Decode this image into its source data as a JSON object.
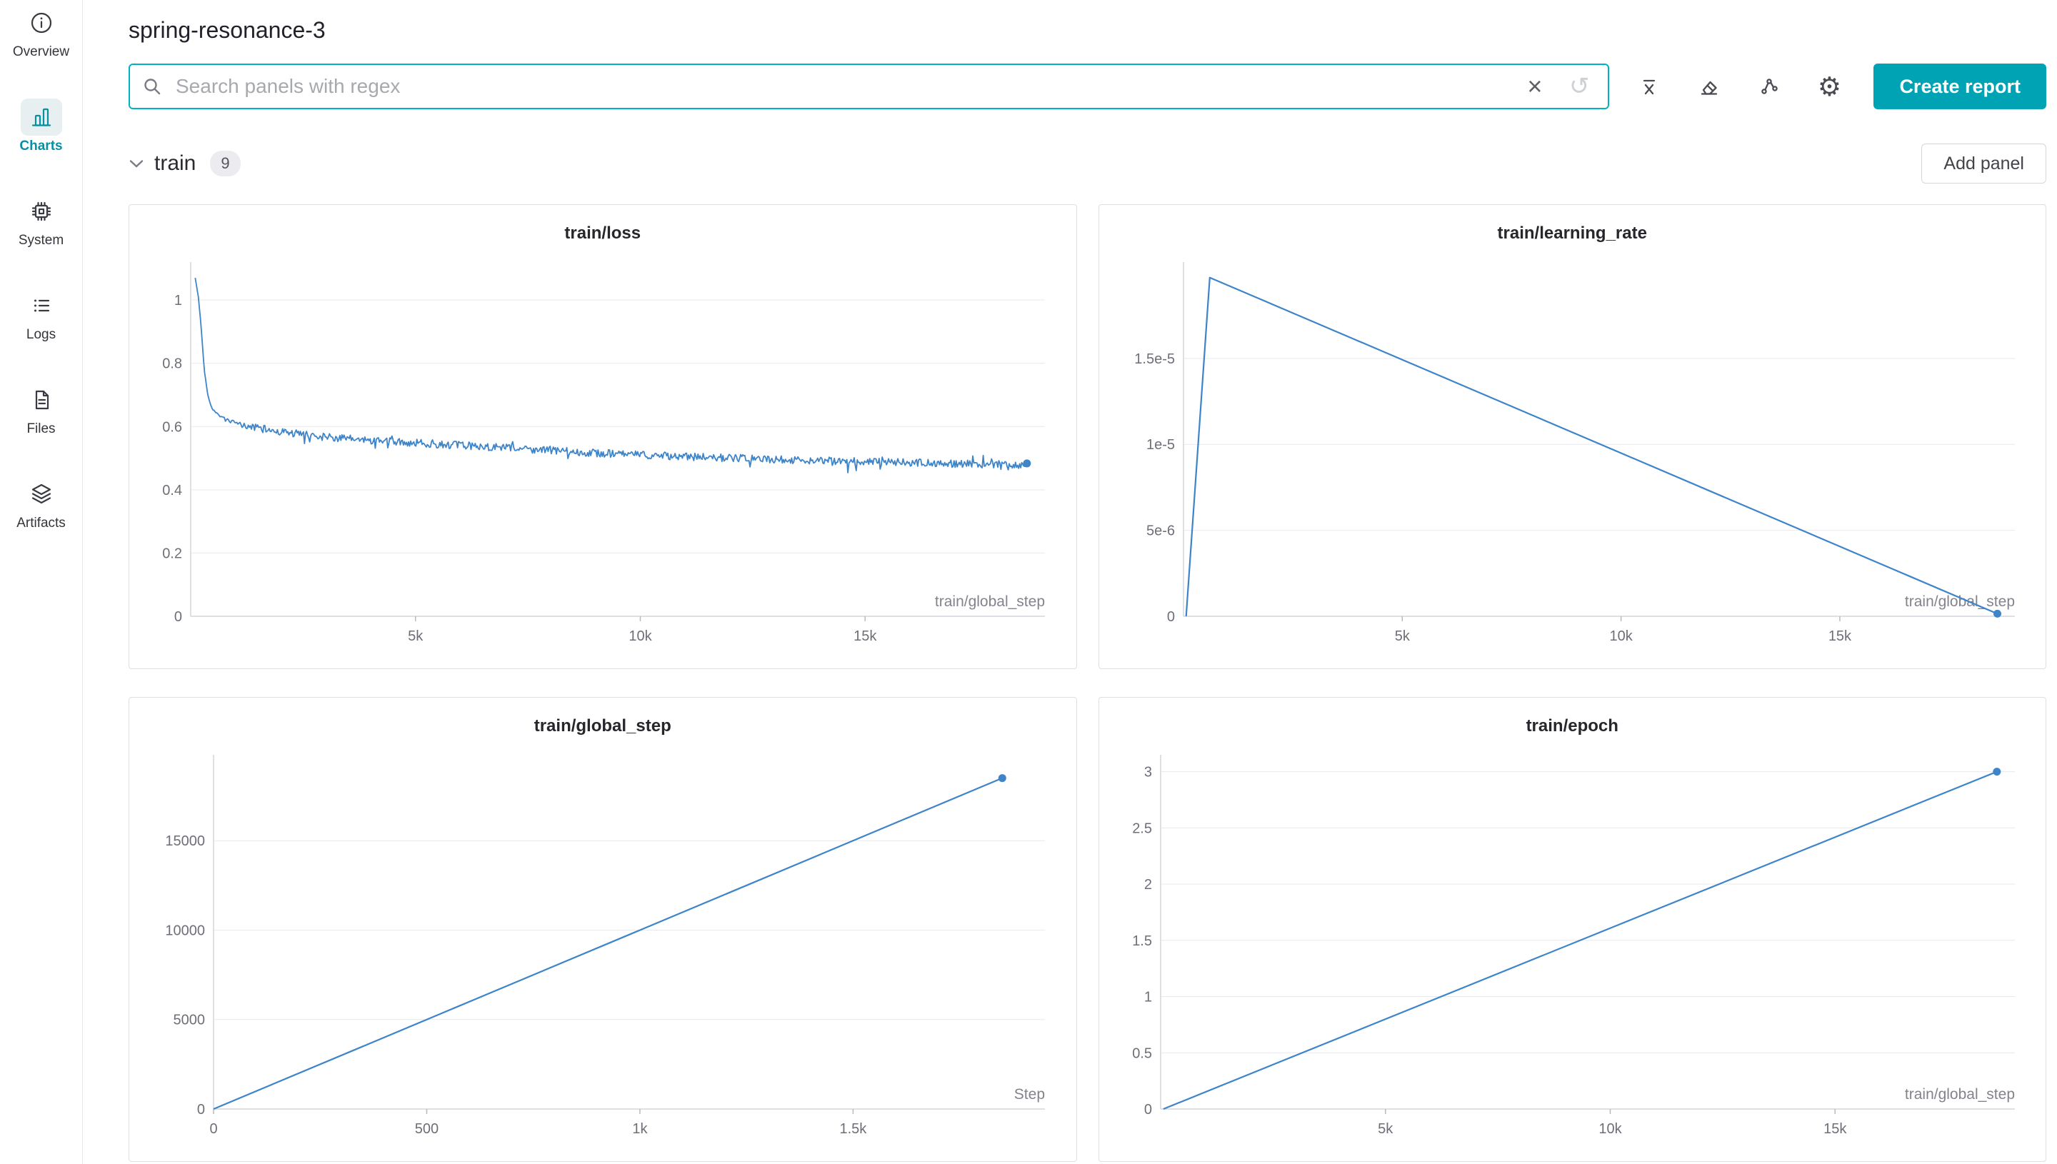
{
  "header": {
    "title": "spring-resonance-3"
  },
  "sidebar": {
    "items": [
      {
        "label": "Overview",
        "icon": "info-icon",
        "active": false
      },
      {
        "label": "Charts",
        "icon": "bar-chart-icon",
        "active": true
      },
      {
        "label": "System",
        "icon": "cpu-icon",
        "active": false
      },
      {
        "label": "Logs",
        "icon": "list-icon",
        "active": false
      },
      {
        "label": "Files",
        "icon": "document-icon",
        "active": false
      },
      {
        "label": "Artifacts",
        "icon": "layers-icon",
        "active": false
      }
    ]
  },
  "toolbar": {
    "search_placeholder": "Search panels with regex",
    "clear_icon": "×",
    "history_icon": "↺",
    "gear_icon": "⚙",
    "icon_names": [
      "x-axis-icon",
      "eraser-icon",
      "node-graph-icon",
      "settings-gear-icon"
    ],
    "create_report_label": "Create report"
  },
  "section": {
    "name": "train",
    "count": "9",
    "add_panel_label": "Add panel"
  },
  "colors": {
    "accent": "#00a3b4",
    "input_border": "#00b2c4",
    "line": "#3e84c8",
    "grid": "#e9e9ee",
    "axis": "#d6d6dc",
    "tick_text": "#6e6e78",
    "axis_label": "#83838d"
  },
  "charts": [
    {
      "type": "line",
      "title": "train/loss",
      "xlabel": "train/global_step",
      "xlim": [
        0,
        19000
      ],
      "ylim": [
        0,
        1.12
      ],
      "xticks": [
        {
          "v": 5000,
          "label": "5k"
        },
        {
          "v": 10000,
          "label": "10k"
        },
        {
          "v": 15000,
          "label": "15k"
        }
      ],
      "yticks": [
        {
          "v": 0,
          "label": "0"
        },
        {
          "v": 0.2,
          "label": "0.2"
        },
        {
          "v": 0.4,
          "label": "0.4"
        },
        {
          "v": 0.6,
          "label": "0.6"
        },
        {
          "v": 0.8,
          "label": "0.8"
        },
        {
          "v": 1,
          "label": "1"
        }
      ],
      "keypoints": [
        [
          100,
          1.07
        ],
        [
          170,
          1.01
        ],
        [
          230,
          0.92
        ],
        [
          300,
          0.78
        ],
        [
          380,
          0.7
        ],
        [
          460,
          0.66
        ],
        [
          560,
          0.645
        ],
        [
          700,
          0.628
        ],
        [
          900,
          0.615
        ],
        [
          1200,
          0.602
        ],
        [
          1700,
          0.59
        ],
        [
          2300,
          0.578
        ],
        [
          3000,
          0.567
        ],
        [
          4000,
          0.556
        ],
        [
          5000,
          0.548
        ],
        [
          6500,
          0.537
        ],
        [
          8000,
          0.524
        ],
        [
          9500,
          0.513
        ],
        [
          11000,
          0.505
        ],
        [
          12500,
          0.498
        ],
        [
          14000,
          0.492
        ],
        [
          15500,
          0.487
        ],
        [
          17000,
          0.483
        ],
        [
          18600,
          0.478
        ]
      ],
      "noise": 0.012,
      "spike": 0.03,
      "spike_p": 0.06,
      "samples": 800,
      "seed": 42,
      "stroke": 1.8,
      "end_dot": true,
      "margin_left": 86
    },
    {
      "type": "line",
      "title": "train/learning_rate",
      "xlabel": "train/global_step",
      "xlim": [
        0,
        19000
      ],
      "ylim": [
        0,
        2.06e-05
      ],
      "xticks": [
        {
          "v": 5000,
          "label": "5k"
        },
        {
          "v": 10000,
          "label": "10k"
        },
        {
          "v": 15000,
          "label": "15k"
        }
      ],
      "yticks": [
        {
          "v": 0,
          "label": "0"
        },
        {
          "v": 5e-06,
          "label": "5e-6"
        },
        {
          "v": 1e-05,
          "label": "1e-5"
        },
        {
          "v": 1.5e-05,
          "label": "1.5e-5"
        }
      ],
      "keypoints": [
        [
          60,
          0
        ],
        [
          600,
          1.97e-05
        ],
        [
          18600,
          1.5e-07
        ]
      ],
      "noise": 0,
      "stroke": 2.2,
      "end_dot": true,
      "margin_left": 118
    },
    {
      "type": "line",
      "title": "train/global_step",
      "xlabel": "Step",
      "xlim": [
        0,
        1950
      ],
      "ylim": [
        0,
        19800
      ],
      "xticks": [
        {
          "v": 0,
          "label": "0"
        },
        {
          "v": 500,
          "label": "500"
        },
        {
          "v": 1000,
          "label": "1k"
        },
        {
          "v": 1500,
          "label": "1.5k"
        }
      ],
      "yticks": [
        {
          "v": 0,
          "label": "0"
        },
        {
          "v": 5000,
          "label": "5000"
        },
        {
          "v": 10000,
          "label": "10000"
        },
        {
          "v": 15000,
          "label": "15000"
        }
      ],
      "keypoints": [
        [
          0,
          0
        ],
        [
          1850,
          18500
        ]
      ],
      "noise": 0,
      "stroke": 2.2,
      "end_dot": true,
      "margin_left": 118
    },
    {
      "type": "line",
      "title": "train/epoch",
      "xlabel": "train/global_step",
      "xlim": [
        0,
        19000
      ],
      "ylim": [
        0,
        3.15
      ],
      "xticks": [
        {
          "v": 5000,
          "label": "5k"
        },
        {
          "v": 10000,
          "label": "10k"
        },
        {
          "v": 15000,
          "label": "15k"
        }
      ],
      "yticks": [
        {
          "v": 0,
          "label": "0"
        },
        {
          "v": 0.5,
          "label": "0.5"
        },
        {
          "v": 1,
          "label": "1"
        },
        {
          "v": 1.5,
          "label": "1.5"
        },
        {
          "v": 2,
          "label": "2"
        },
        {
          "v": 2.5,
          "label": "2.5"
        },
        {
          "v": 3,
          "label": "3"
        }
      ],
      "keypoints": [
        [
          60,
          0
        ],
        [
          18600,
          3
        ]
      ],
      "noise": 0,
      "stroke": 2.2,
      "end_dot": true,
      "margin_left": 86
    }
  ]
}
